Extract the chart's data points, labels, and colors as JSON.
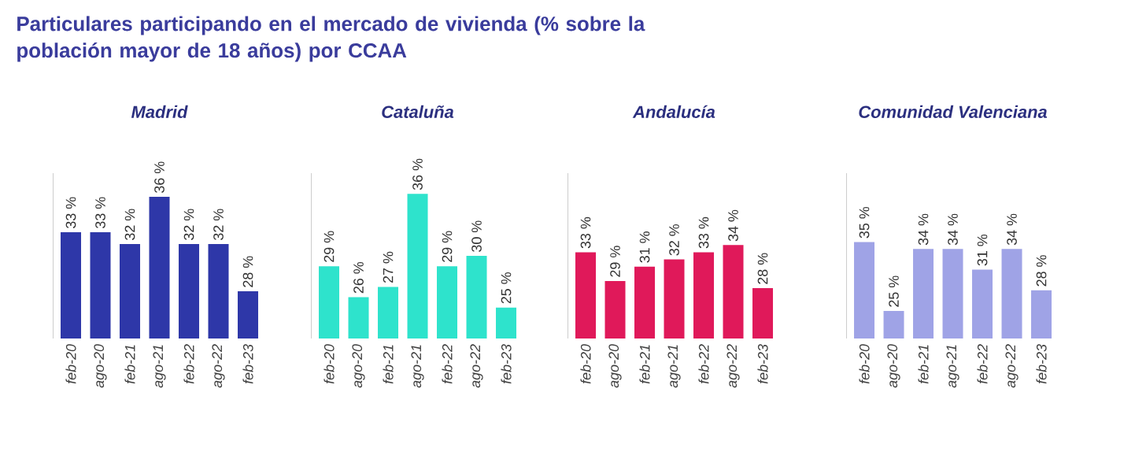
{
  "chart_data": [
    {
      "type": "bar",
      "title": "Madrid",
      "annotations": [
        "Particulares participando en el mercado de vivienda (% sobre la población mayor de 18 años) por CCAA"
      ],
      "categories": [
        "feb-20",
        "ago-20",
        "feb-21",
        "ago-21",
        "feb-22",
        "ago-22",
        "feb-23"
      ],
      "values": [
        33,
        33,
        32,
        36,
        32,
        32,
        28
      ],
      "value_labels": [
        "33 %",
        "33 %",
        "32 %",
        "36 %",
        "32 %",
        "32 %",
        "28 %"
      ],
      "color": "#2e37a8",
      "ylim": [
        24,
        38
      ]
    },
    {
      "type": "bar",
      "title": "Cataluña",
      "categories": [
        "feb-20",
        "ago-20",
        "feb-21",
        "ago-21",
        "feb-22",
        "ago-22",
        "feb-23"
      ],
      "values": [
        29,
        26,
        27,
        36,
        29,
        30,
        25
      ],
      "value_labels": [
        "29 %",
        "26 %",
        "27 %",
        "36 %",
        "29 %",
        "30 %",
        "25 %"
      ],
      "color": "#2ee3cc",
      "ylim": [
        22,
        38
      ]
    },
    {
      "type": "bar",
      "title": "Andalucía",
      "categories": [
        "feb-20",
        "ago-20",
        "feb-21",
        "ago-21",
        "feb-22",
        "ago-22",
        "feb-23"
      ],
      "values": [
        33,
        29,
        31,
        32,
        33,
        34,
        28
      ],
      "value_labels": [
        "33 %",
        "29 %",
        "31 %",
        "32 %",
        "33 %",
        "34 %",
        "28 %"
      ],
      "color": "#e0195a",
      "ylim": [
        21,
        44
      ]
    },
    {
      "type": "bar",
      "title": "Comunidad Valenciana",
      "categories": [
        "feb-20",
        "ago-20",
        "feb-21",
        "ago-21",
        "feb-22",
        "ago-22",
        "feb-23"
      ],
      "values": [
        35,
        25,
        34,
        34,
        31,
        34,
        28
      ],
      "value_labels": [
        "35 %",
        "25 %",
        "34 %",
        "34 %",
        "31 %",
        "34 %",
        "28 %"
      ],
      "color": "#9fa3e6",
      "ylim": [
        21,
        45
      ]
    }
  ]
}
